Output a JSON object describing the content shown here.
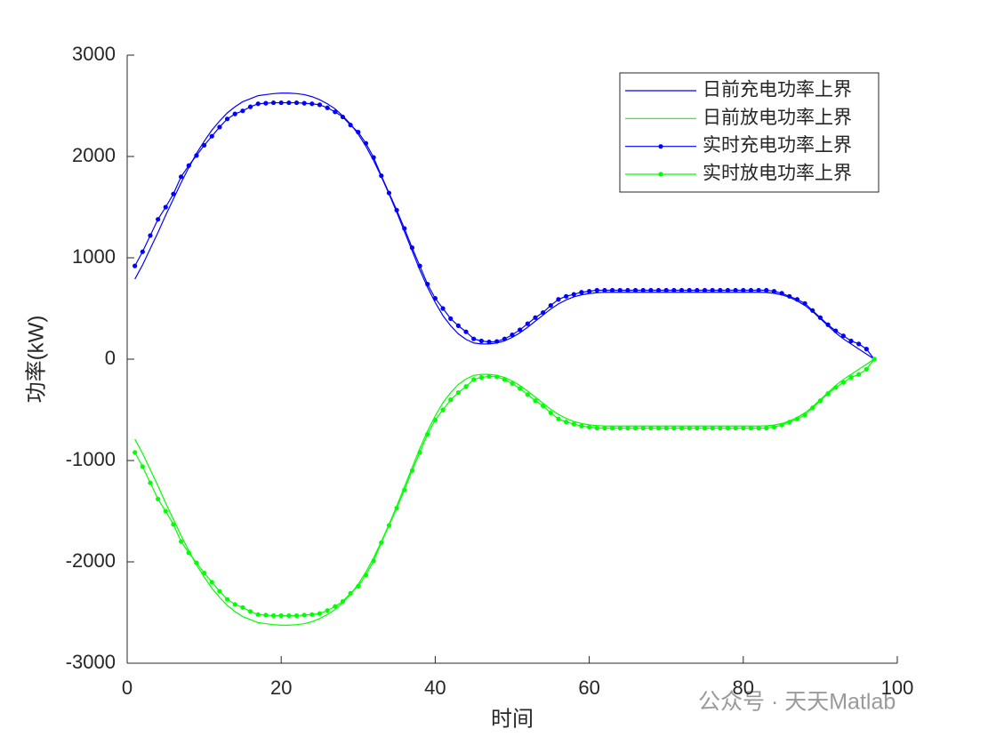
{
  "chart_data": {
    "type": "line",
    "xlabel": "时间",
    "ylabel": "功率(kW)",
    "annotation": "公众号 · 天天Matlab",
    "x": [
      1,
      2,
      3,
      4,
      5,
      6,
      7,
      8,
      9,
      10,
      11,
      12,
      13,
      14,
      15,
      16,
      17,
      18,
      19,
      20,
      21,
      22,
      23,
      24,
      25,
      26,
      27,
      28,
      29,
      30,
      31,
      32,
      33,
      34,
      35,
      36,
      37,
      38,
      39,
      40,
      41,
      42,
      43,
      44,
      45,
      46,
      47,
      48,
      49,
      50,
      51,
      52,
      53,
      54,
      55,
      56,
      57,
      58,
      59,
      60,
      61,
      62,
      63,
      64,
      65,
      66,
      67,
      68,
      69,
      70,
      71,
      72,
      73,
      74,
      75,
      76,
      77,
      78,
      79,
      80,
      81,
      82,
      83,
      84,
      85,
      86,
      87,
      88,
      89,
      90,
      91,
      92,
      93,
      94,
      95,
      96,
      97
    ],
    "series": [
      {
        "name": "日前充电功率上界",
        "color": "#0000ff",
        "marker": false,
        "values": [
          790,
          930,
          1090,
          1250,
          1420,
          1580,
          1740,
          1890,
          2030,
          2150,
          2260,
          2350,
          2430,
          2490,
          2540,
          2570,
          2600,
          2610,
          2620,
          2625,
          2625,
          2620,
          2610,
          2590,
          2560,
          2520,
          2470,
          2400,
          2320,
          2220,
          2100,
          1960,
          1800,
          1630,
          1450,
          1260,
          1070,
          880,
          710,
          560,
          430,
          330,
          250,
          195,
          160,
          150,
          150,
          160,
          180,
          215,
          260,
          315,
          375,
          435,
          495,
          545,
          585,
          615,
          635,
          648,
          655,
          660,
          660,
          660,
          660,
          660,
          660,
          660,
          660,
          660,
          660,
          660,
          660,
          660,
          660,
          660,
          660,
          660,
          660,
          660,
          660,
          660,
          658,
          650,
          635,
          610,
          575,
          530,
          470,
          400,
          330,
          260,
          200,
          150,
          100,
          50,
          0
        ]
      },
      {
        "name": "日前放电功率上界",
        "color": "#00ff00",
        "marker": false,
        "values": [
          -790,
          -930,
          -1090,
          -1250,
          -1420,
          -1580,
          -1740,
          -1890,
          -2030,
          -2150,
          -2260,
          -2350,
          -2430,
          -2490,
          -2540,
          -2570,
          -2600,
          -2610,
          -2620,
          -2625,
          -2625,
          -2620,
          -2610,
          -2590,
          -2560,
          -2520,
          -2470,
          -2400,
          -2320,
          -2220,
          -2100,
          -1960,
          -1800,
          -1630,
          -1450,
          -1260,
          -1070,
          -880,
          -710,
          -560,
          -430,
          -330,
          -250,
          -195,
          -160,
          -150,
          -150,
          -160,
          -180,
          -215,
          -260,
          -315,
          -375,
          -435,
          -495,
          -545,
          -585,
          -615,
          -635,
          -648,
          -655,
          -660,
          -660,
          -660,
          -660,
          -660,
          -660,
          -660,
          -660,
          -660,
          -660,
          -660,
          -660,
          -660,
          -660,
          -660,
          -660,
          -660,
          -660,
          -660,
          -660,
          -660,
          -658,
          -650,
          -635,
          -610,
          -575,
          -530,
          -470,
          -400,
          -330,
          -260,
          -200,
          -150,
          -100,
          -50,
          0
        ]
      },
      {
        "name": "实时充电功率上界",
        "color": "#0000ff",
        "marker": true,
        "values": [
          920,
          1060,
          1220,
          1380,
          1500,
          1630,
          1800,
          1910,
          2010,
          2110,
          2200,
          2290,
          2370,
          2420,
          2450,
          2490,
          2520,
          2525,
          2530,
          2530,
          2530,
          2530,
          2525,
          2520,
          2510,
          2480,
          2440,
          2390,
          2310,
          2240,
          2130,
          1990,
          1810,
          1640,
          1470,
          1290,
          1100,
          920,
          740,
          600,
          500,
          400,
          330,
          270,
          200,
          180,
          170,
          175,
          200,
          240,
          290,
          350,
          410,
          460,
          530,
          590,
          620,
          640,
          660,
          670,
          680,
          680,
          680,
          680,
          680,
          680,
          680,
          680,
          680,
          680,
          680,
          680,
          680,
          680,
          680,
          680,
          680,
          680,
          680,
          680,
          680,
          680,
          680,
          670,
          650,
          620,
          590,
          550,
          480,
          410,
          340,
          280,
          230,
          180,
          150,
          100,
          0
        ]
      },
      {
        "name": "实时放电功率上界",
        "color": "#00ff00",
        "marker": true,
        "values": [
          -920,
          -1060,
          -1220,
          -1380,
          -1500,
          -1630,
          -1800,
          -1910,
          -2010,
          -2110,
          -2200,
          -2290,
          -2370,
          -2420,
          -2450,
          -2490,
          -2520,
          -2525,
          -2530,
          -2530,
          -2530,
          -2530,
          -2525,
          -2520,
          -2510,
          -2480,
          -2440,
          -2390,
          -2310,
          -2240,
          -2130,
          -1990,
          -1810,
          -1640,
          -1470,
          -1290,
          -1100,
          -920,
          -740,
          -600,
          -500,
          -400,
          -330,
          -270,
          -200,
          -180,
          -170,
          -175,
          -200,
          -240,
          -290,
          -350,
          -410,
          -460,
          -530,
          -590,
          -620,
          -640,
          -660,
          -670,
          -680,
          -680,
          -680,
          -680,
          -680,
          -680,
          -680,
          -680,
          -680,
          -680,
          -680,
          -680,
          -680,
          -680,
          -680,
          -680,
          -680,
          -680,
          -680,
          -680,
          -680,
          -680,
          -680,
          -670,
          -650,
          -620,
          -590,
          -550,
          -480,
          -410,
          -340,
          -280,
          -230,
          -180,
          -150,
          -100,
          0
        ]
      }
    ],
    "xlim": [
      0,
      100
    ],
    "xticks": [
      0,
      20,
      40,
      60,
      80,
      100
    ],
    "ylim": [
      -3000,
      3000
    ],
    "yticks": [
      -3000,
      -2000,
      -1000,
      0,
      1000,
      2000,
      3000
    ],
    "grid": false,
    "legend": "top-right"
  }
}
